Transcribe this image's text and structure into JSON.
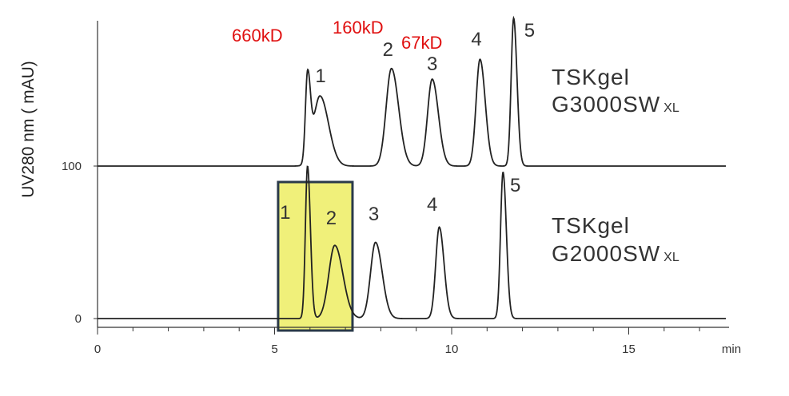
{
  "chart_data": {
    "type": "line",
    "xlabel": "min",
    "ylabel": "UV280 nm ( mAU)",
    "xlim": [
      0,
      18
    ],
    "x_ticks": [
      "0",
      "5",
      "10",
      "15"
    ],
    "y_ticks": [
      "0",
      "100"
    ],
    "grid": false,
    "series": [
      {
        "column": "TSKgel",
        "column_model": "G3000SW",
        "column_suffix": "XL",
        "baseline": 100,
        "peaks": [
          {
            "label": "1",
            "x": 5.93,
            "height": 56,
            "width": 0.06
          },
          {
            "label": "1",
            "x": 6.28,
            "height": 46,
            "width": 0.18
          },
          {
            "label": "2",
            "x": 8.3,
            "height": 64,
            "width": 0.15
          },
          {
            "label": "3",
            "x": 9.45,
            "height": 57,
            "width": 0.13
          },
          {
            "label": "4",
            "x": 10.8,
            "height": 70,
            "width": 0.11
          },
          {
            "label": "5",
            "x": 11.75,
            "height": 97,
            "width": 0.07
          }
        ],
        "peak_labels": [
          {
            "text": "1",
            "x": 6.3
          },
          {
            "text": "2",
            "x": 8.2
          },
          {
            "text": "3",
            "x": 9.45
          },
          {
            "text": "4",
            "x": 10.7
          },
          {
            "text": "5",
            "x": 12.2
          }
        ]
      },
      {
        "column": "TSKgel",
        "column_model": "G2000SW",
        "column_suffix": "XL",
        "baseline": 0,
        "peaks": [
          {
            "label": "1",
            "x": 5.93,
            "height": 100,
            "width": 0.06
          },
          {
            "label": "2",
            "x": 6.7,
            "height": 48,
            "width": 0.17
          },
          {
            "label": "3",
            "x": 7.85,
            "height": 50,
            "width": 0.14
          },
          {
            "label": "4",
            "x": 9.65,
            "height": 60,
            "width": 0.1
          },
          {
            "label": "5",
            "x": 11.45,
            "height": 96,
            "width": 0.07
          }
        ],
        "peak_labels": [
          {
            "text": "1",
            "x": 5.3
          },
          {
            "text": "2",
            "x": 6.6
          },
          {
            "text": "3",
            "x": 7.8
          },
          {
            "text": "4",
            "x": 9.45
          },
          {
            "text": "5",
            "x": 11.8
          }
        ]
      }
    ],
    "annotations": [
      {
        "text": "660kD"
      },
      {
        "text": "160kD"
      },
      {
        "text": "67kD"
      }
    ],
    "highlight_box": {
      "x_range": [
        5.1,
        7.2
      ],
      "color": "#f0f07a",
      "border_color": "#2a3a4a"
    },
    "colors": {
      "trace": "#222222",
      "axis": "#333333",
      "mw_labels": "#e01010"
    }
  }
}
